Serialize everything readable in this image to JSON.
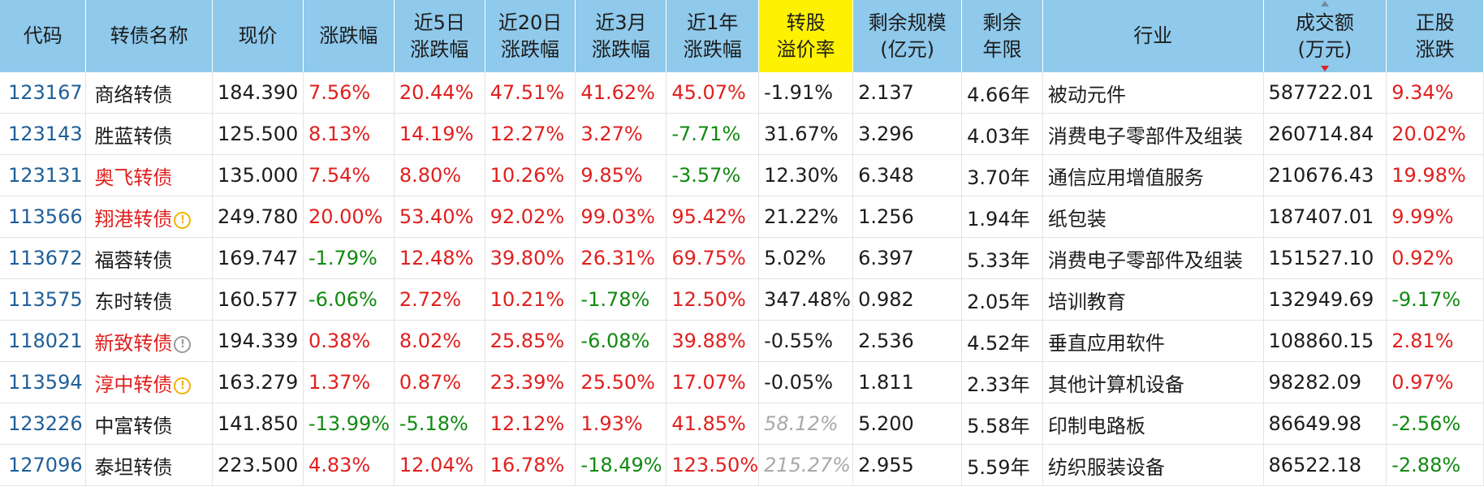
{
  "columns": [
    "代码",
    "转债名称",
    "现价",
    "涨跌幅",
    "近5日\n涨跌幅",
    "近20日\n涨跌幅",
    "近3月\n涨跌幅",
    "近1年\n涨跌幅",
    "转股\n溢价率",
    "剩余规模\n(亿元)",
    "剩余\n年限",
    "行业",
    "成交额\n(万元)",
    "正股\n涨跌"
  ],
  "highlight_column": "转股溢价率",
  "sorted_column": "成交额(万元)",
  "sort_order": "descending",
  "colors": {
    "header_bg": "#8fc9eb",
    "highlight_bg": "#fff200",
    "up": "#e0201e",
    "down": "#108a10",
    "code": "#1f5f99"
  },
  "rows": [
    {
      "code": "123167",
      "name": "商络转债",
      "name_color": "normal",
      "icon": "",
      "price": "184.390",
      "chg": "7.56%",
      "chg5": "20.44%",
      "chg20": "47.51%",
      "chg3m": "41.62%",
      "chg1y": "45.07%",
      "premium": "-1.91%",
      "premium_style": "normal",
      "size": "2.137",
      "years": "4.66年",
      "industry": "被动元件",
      "turnover": "587722.01",
      "stock_chg": "9.34%"
    },
    {
      "code": "123143",
      "name": "胜蓝转债",
      "name_color": "normal",
      "icon": "",
      "price": "125.500",
      "chg": "8.13%",
      "chg5": "14.19%",
      "chg20": "12.27%",
      "chg3m": "3.27%",
      "chg1y": "-7.71%",
      "premium": "31.67%",
      "premium_style": "normal",
      "size": "3.296",
      "years": "4.03年",
      "industry": "消费电子零部件及组装",
      "turnover": "260714.84",
      "stock_chg": "20.02%"
    },
    {
      "code": "123131",
      "name": "奥飞转债",
      "name_color": "red",
      "icon": "",
      "price": "135.000",
      "chg": "7.54%",
      "chg5": "8.80%",
      "chg20": "10.26%",
      "chg3m": "9.85%",
      "chg1y": "-3.57%",
      "premium": "12.30%",
      "premium_style": "normal",
      "size": "6.348",
      "years": "3.70年",
      "industry": "通信应用增值服务",
      "turnover": "210676.43",
      "stock_chg": "19.98%"
    },
    {
      "code": "113566",
      "name": "翔港转债",
      "name_color": "red",
      "icon": "warning-icon",
      "price": "249.780",
      "chg": "20.00%",
      "chg5": "53.40%",
      "chg20": "92.02%",
      "chg3m": "99.03%",
      "chg1y": "95.42%",
      "premium": "21.22%",
      "premium_style": "normal",
      "size": "1.256",
      "years": "1.94年",
      "industry": "纸包装",
      "turnover": "187407.01",
      "stock_chg": "9.99%"
    },
    {
      "code": "113672",
      "name": "福蓉转债",
      "name_color": "normal",
      "icon": "",
      "price": "169.747",
      "chg": "-1.79%",
      "chg5": "12.48%",
      "chg20": "39.80%",
      "chg3m": "26.31%",
      "chg1y": "69.75%",
      "premium": "5.02%",
      "premium_style": "normal",
      "size": "6.397",
      "years": "5.33年",
      "industry": "消费电子零部件及组装",
      "turnover": "151527.10",
      "stock_chg": "0.92%"
    },
    {
      "code": "113575",
      "name": "东时转债",
      "name_color": "normal",
      "icon": "",
      "price": "160.577",
      "chg": "-6.06%",
      "chg5": "2.72%",
      "chg20": "10.21%",
      "chg3m": "-1.78%",
      "chg1y": "12.50%",
      "premium": "347.48%",
      "premium_style": "normal",
      "size": "0.982",
      "years": "2.05年",
      "industry": "培训教育",
      "turnover": "132949.69",
      "stock_chg": "-9.17%"
    },
    {
      "code": "118021",
      "name": "新致转债",
      "name_color": "red",
      "icon": "info-icon",
      "price": "194.339",
      "chg": "0.38%",
      "chg5": "8.02%",
      "chg20": "25.85%",
      "chg3m": "-6.08%",
      "chg1y": "39.88%",
      "premium": "-0.55%",
      "premium_style": "normal",
      "size": "2.536",
      "years": "4.52年",
      "industry": "垂直应用软件",
      "turnover": "108860.15",
      "stock_chg": "2.81%"
    },
    {
      "code": "113594",
      "name": "淳中转债",
      "name_color": "red",
      "icon": "warning-icon",
      "price": "163.279",
      "chg": "1.37%",
      "chg5": "0.87%",
      "chg20": "23.39%",
      "chg3m": "25.50%",
      "chg1y": "17.07%",
      "premium": "-0.05%",
      "premium_style": "normal",
      "size": "1.811",
      "years": "2.33年",
      "industry": "其他计算机设备",
      "turnover": "98282.09",
      "stock_chg": "0.97%"
    },
    {
      "code": "123226",
      "name": "中富转债",
      "name_color": "normal",
      "icon": "",
      "price": "141.850",
      "chg": "-13.99%",
      "chg5": "-5.18%",
      "chg20": "12.12%",
      "chg3m": "1.93%",
      "chg1y": "41.85%",
      "premium": "58.12%",
      "premium_style": "muted-italic",
      "size": "5.200",
      "years": "5.58年",
      "industry": "印制电路板",
      "turnover": "86649.98",
      "stock_chg": "-2.56%"
    },
    {
      "code": "127096",
      "name": "泰坦转债",
      "name_color": "normal",
      "icon": "",
      "price": "223.500",
      "chg": "4.83%",
      "chg5": "12.04%",
      "chg20": "16.78%",
      "chg3m": "-18.49%",
      "chg1y": "123.50%",
      "premium": "215.27%",
      "premium_style": "muted-italic",
      "size": "2.955",
      "years": "5.59年",
      "industry": "纺织服装设备",
      "turnover": "86522.18",
      "stock_chg": "-2.88%"
    }
  ]
}
